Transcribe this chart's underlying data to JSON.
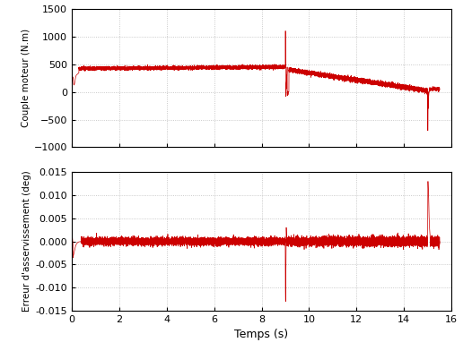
{
  "xlabel": "Temps (s)",
  "ylabel1": "Couple moteur (N.m)",
  "ylabel2": "Erreur d'asservissement (deg)",
  "xlim": [
    0,
    16
  ],
  "ylim1": [
    -1000,
    1500
  ],
  "ylim2": [
    -0.015,
    0.015
  ],
  "xticks": [
    0,
    2,
    4,
    6,
    8,
    10,
    12,
    14,
    16
  ],
  "yticks1": [
    -1000,
    -500,
    0,
    500,
    1000,
    1500
  ],
  "yticks2": [
    -0.015,
    -0.01,
    -0.005,
    0,
    0.005,
    0.01,
    0.015
  ],
  "line_color": "#CC0000",
  "background_color": "#ffffff",
  "grid_color": "#bbbbbb",
  "dt": 0.001,
  "total_time": 15.5,
  "seed": 42
}
